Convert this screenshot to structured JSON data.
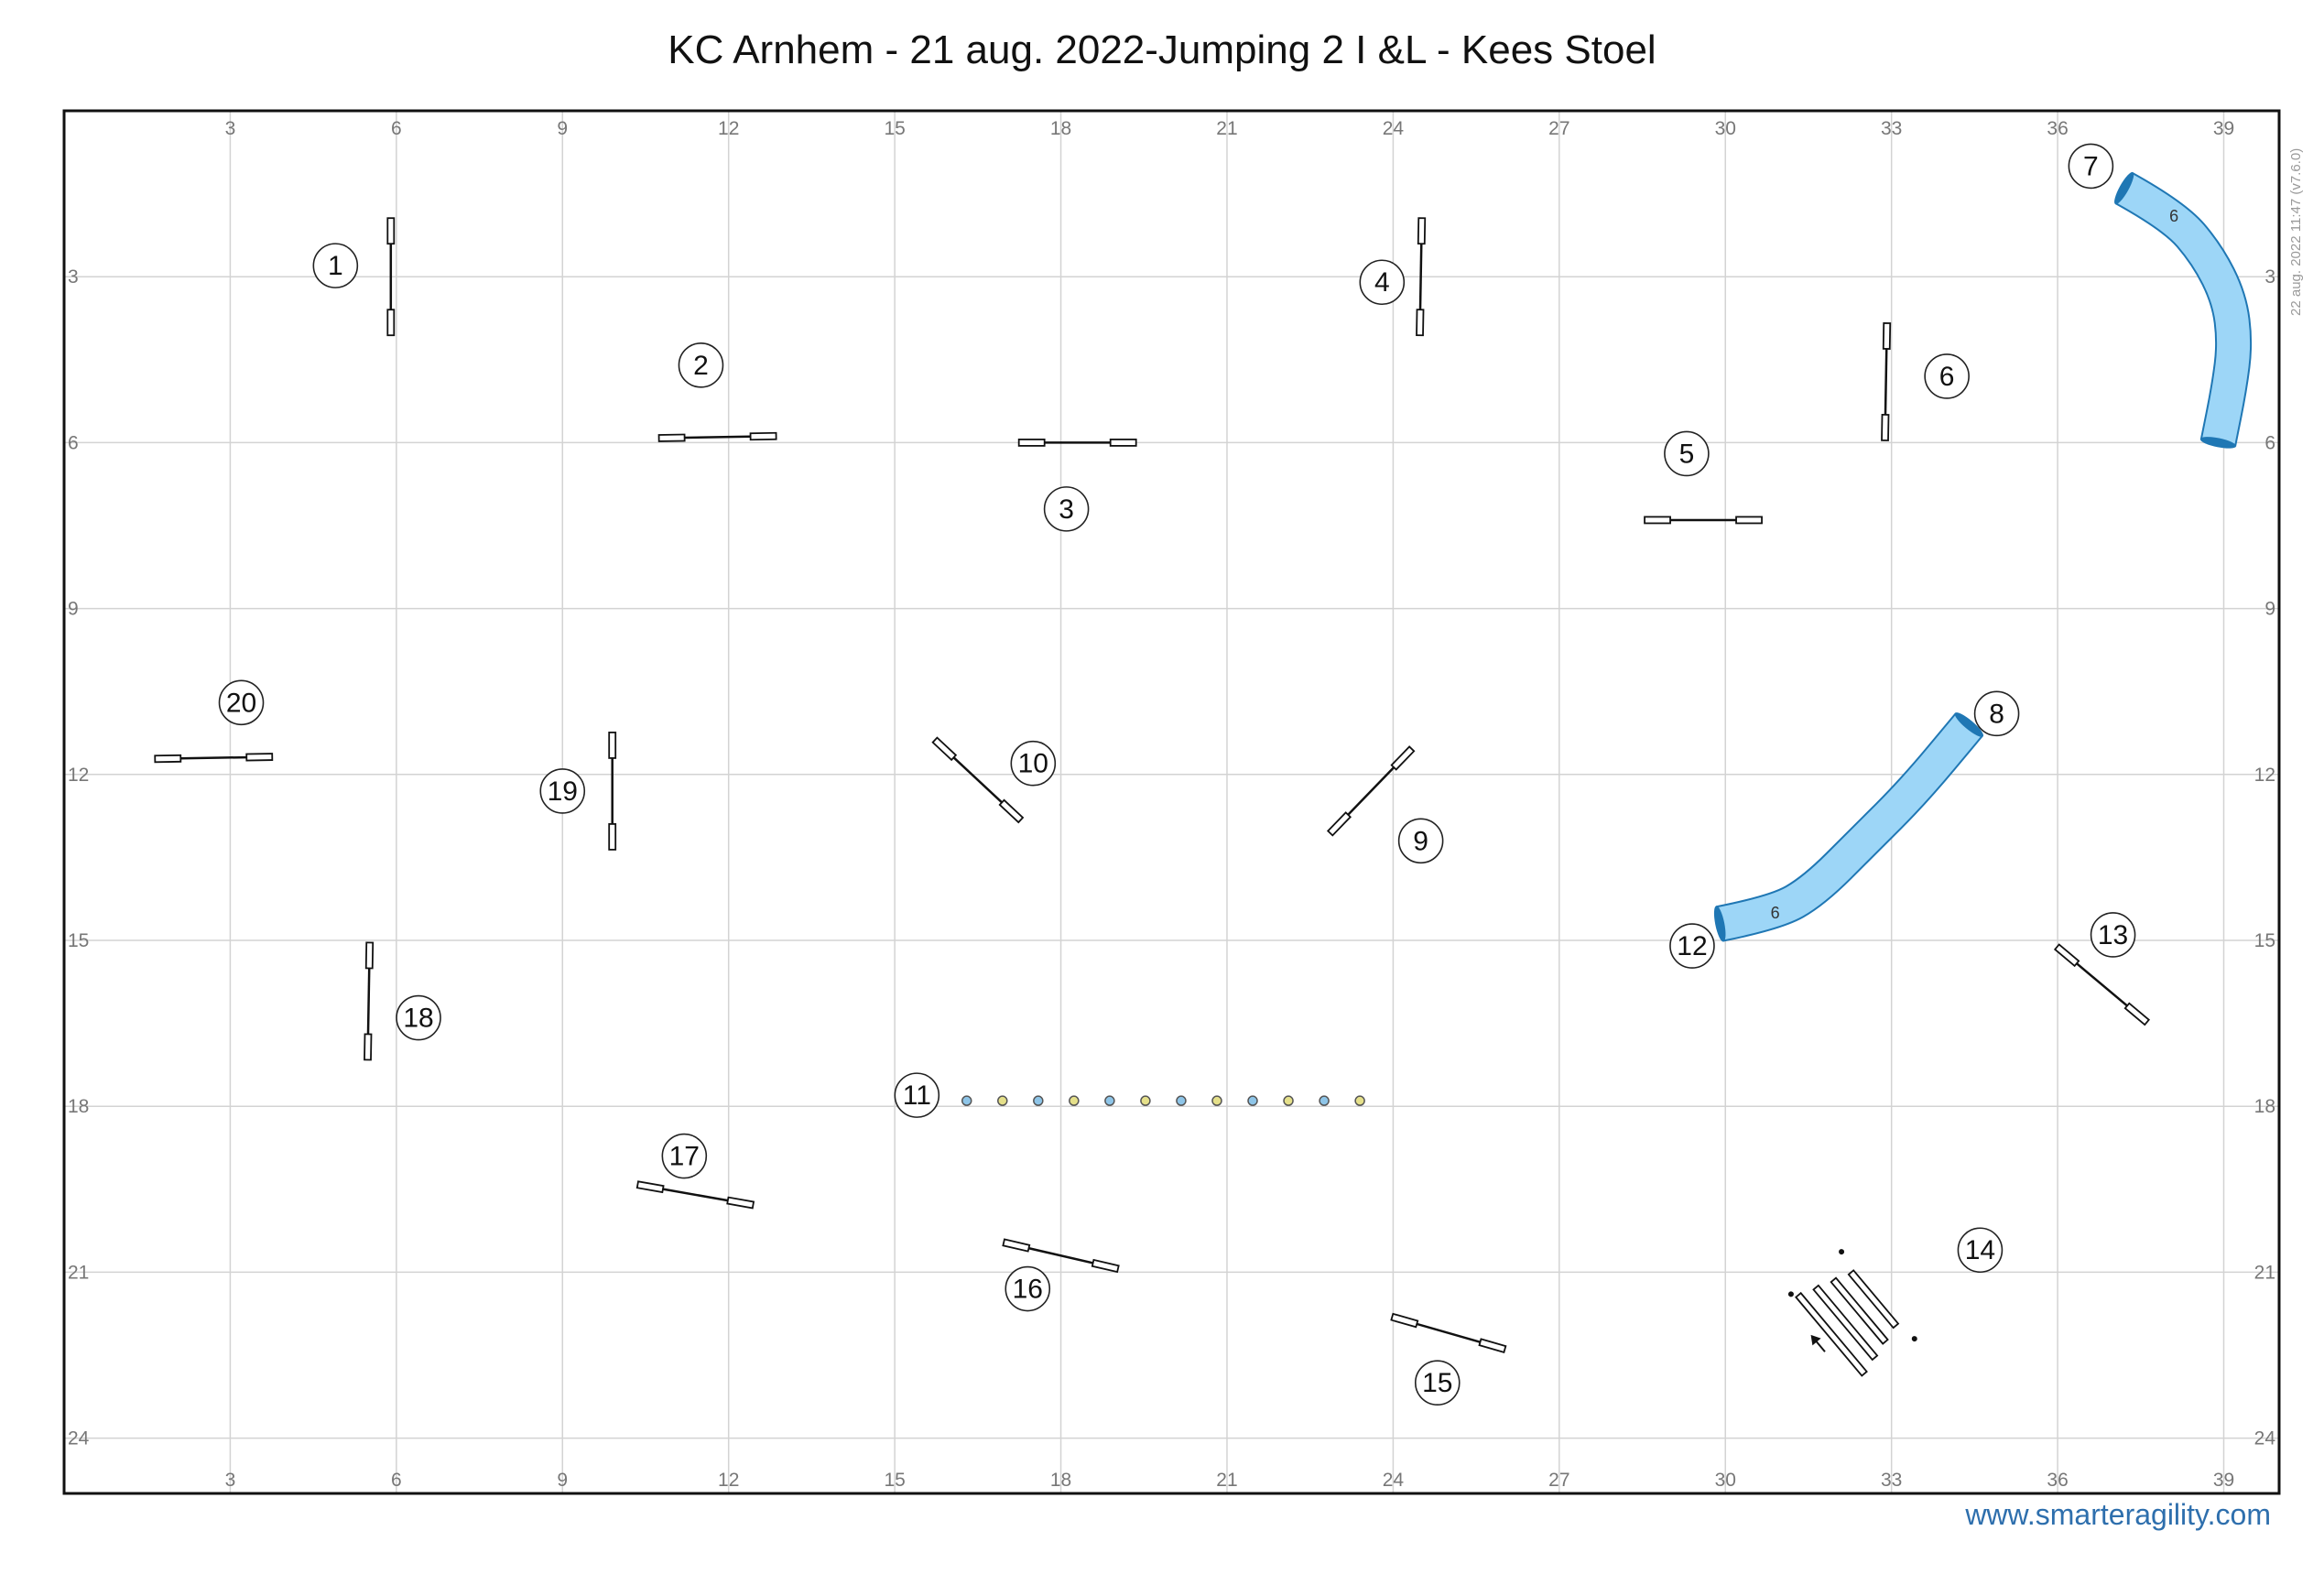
{
  "title": "KC Arnhem - 21 aug. 2022-Jumping 2 I &L - Kees Stoel",
  "footer_link": "www.smarteragility.com",
  "side_note": "22 aug. 2022 11:47  (v7.6.0)",
  "colors": {
    "tunnel_fill": "#9dd6f7",
    "tunnel_stroke": "#1f77b4",
    "grid": "#d3d3d3",
    "frame": "#111111",
    "weave_blue": "#8ec5e8",
    "weave_yellow": "#e5e08a"
  },
  "arena": {
    "x_max_m": 40,
    "y_max_m": 25,
    "x_ticks": [
      "3",
      "6",
      "9",
      "12",
      "15",
      "18",
      "21",
      "24",
      "27",
      "30",
      "33",
      "36",
      "39"
    ],
    "y_ticks": [
      "3",
      "6",
      "9",
      "12",
      "15",
      "18",
      "21",
      "24"
    ]
  },
  "obstacles": [
    {
      "type": "jump",
      "number": "1",
      "x": 5.9,
      "y": 3.0,
      "angle": 90,
      "label_x": 4.9,
      "label_y": 2.8
    },
    {
      "type": "jump",
      "number": "2",
      "x": 11.8,
      "y": 5.9,
      "angle": -1,
      "label_x": 11.5,
      "label_y": 4.6
    },
    {
      "type": "jump",
      "number": "3",
      "x": 18.3,
      "y": 6.0,
      "angle": 0,
      "label_x": 18.1,
      "label_y": 7.2
    },
    {
      "type": "jump",
      "number": "4",
      "x": 24.5,
      "y": 3.0,
      "angle": 91,
      "label_x": 23.8,
      "label_y": 3.1
    },
    {
      "type": "jump",
      "number": "5",
      "x": 29.6,
      "y": 7.4,
      "angle": 0,
      "label_x": 29.3,
      "label_y": 6.2
    },
    {
      "type": "jump",
      "number": "6",
      "x": 32.9,
      "y": 4.9,
      "angle": 91,
      "label_x": 34.0,
      "label_y": 4.8
    },
    {
      "type": "tunnel",
      "number": "7",
      "length_label": "6",
      "label_x": 36.6,
      "label_y": 1.0,
      "path": [
        [
          37.2,
          1.4
        ],
        [
          38.1,
          1.9
        ],
        [
          38.7,
          2.6
        ],
        [
          39.1,
          3.4
        ],
        [
          39.2,
          4.2
        ],
        [
          39.1,
          5.0
        ],
        [
          38.9,
          6.0
        ]
      ]
    },
    {
      "type": "tunnel",
      "number": "8",
      "length_label": "6",
      "label_x": 34.9,
      "label_y": 10.9,
      "label_ref": "end",
      "path": [
        [
          29.9,
          14.7
        ],
        [
          30.9,
          14.5
        ],
        [
          31.6,
          14.1
        ],
        [
          32.5,
          13.2
        ],
        [
          33.4,
          12.3
        ],
        [
          34.4,
          11.1
        ]
      ]
    },
    {
      "type": "jump",
      "number": "9",
      "x": 23.6,
      "y": 12.3,
      "angle": -46,
      "label_x": 24.5,
      "label_y": 13.2
    },
    {
      "type": "jump",
      "number": "10",
      "x": 16.5,
      "y": 12.1,
      "angle": 43,
      "label_x": 17.5,
      "label_y": 11.8
    },
    {
      "type": "weave",
      "number": "11",
      "poles": 12,
      "x_start": 16.3,
      "x_end": 23.4,
      "y": 17.9,
      "label_x": 15.4,
      "label_y": 17.8
    },
    {
      "type": "tunnel_end",
      "number": "12",
      "label_x": 29.4,
      "label_y": 15.1
    },
    {
      "type": "jump",
      "number": "13",
      "x": 36.8,
      "y": 15.8,
      "angle": 40,
      "label_x": 37.0,
      "label_y": 14.9
    },
    {
      "type": "long_jump",
      "number": "14",
      "x": 32.3,
      "y": 21.8,
      "angle": 50,
      "label_x": 34.6,
      "label_y": 20.6
    },
    {
      "type": "jump",
      "number": "15",
      "x": 25.0,
      "y": 22.1,
      "angle": 16,
      "label_x": 24.8,
      "label_y": 23.0
    },
    {
      "type": "jump",
      "number": "16",
      "x": 18.0,
      "y": 20.7,
      "angle": 13,
      "label_x": 17.4,
      "label_y": 21.3
    },
    {
      "type": "jump",
      "number": "17",
      "x": 11.4,
      "y": 19.6,
      "angle": 10,
      "label_x": 11.2,
      "label_y": 18.9
    },
    {
      "type": "jump",
      "number": "18",
      "x": 5.5,
      "y": 16.1,
      "angle": 91,
      "label_x": 6.4,
      "label_y": 16.4
    },
    {
      "type": "jump",
      "number": "19",
      "x": 9.9,
      "y": 12.3,
      "angle": 90,
      "label_x": 9.0,
      "label_y": 12.3
    },
    {
      "type": "jump",
      "number": "20",
      "x": 2.7,
      "y": 11.7,
      "angle": -1,
      "label_x": 3.2,
      "label_y": 10.7
    }
  ]
}
